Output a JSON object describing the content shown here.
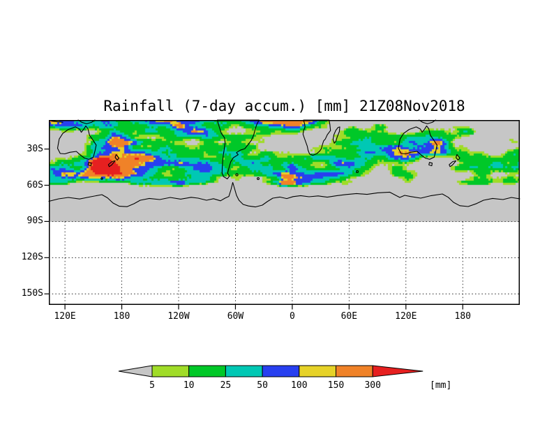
{
  "chart_data": {
    "type": "heatmap",
    "title": "Rainfall (7-day accum.) [mm] 21Z08Nov2018",
    "units": "mm",
    "x_tick_labels": [
      "120E",
      "180",
      "120W",
      "60W",
      "0",
      "60E",
      "120E",
      "180"
    ],
    "y_tick_labels": [
      "30S",
      "60S",
      "90S",
      "120S",
      "150S"
    ],
    "grid": "dotted",
    "nodata_color": "#c6c6c6",
    "coastline_color": "#000000",
    "colorbar": {
      "orientation": "horizontal",
      "tick_labels": [
        "5",
        "10",
        "25",
        "50",
        "100",
        "150",
        "300"
      ],
      "units_label": "[mm]",
      "colors": [
        "#c6c6c6",
        "#a0dc28",
        "#00c828",
        "#00c8b4",
        "#2840f0",
        "#e6d228",
        "#f08228",
        "#e62020"
      ],
      "bin_meanings": [
        "<5",
        "5-10",
        "10-25",
        "25-50",
        "50-100",
        "100-150",
        "150-300",
        ">300"
      ]
    }
  }
}
